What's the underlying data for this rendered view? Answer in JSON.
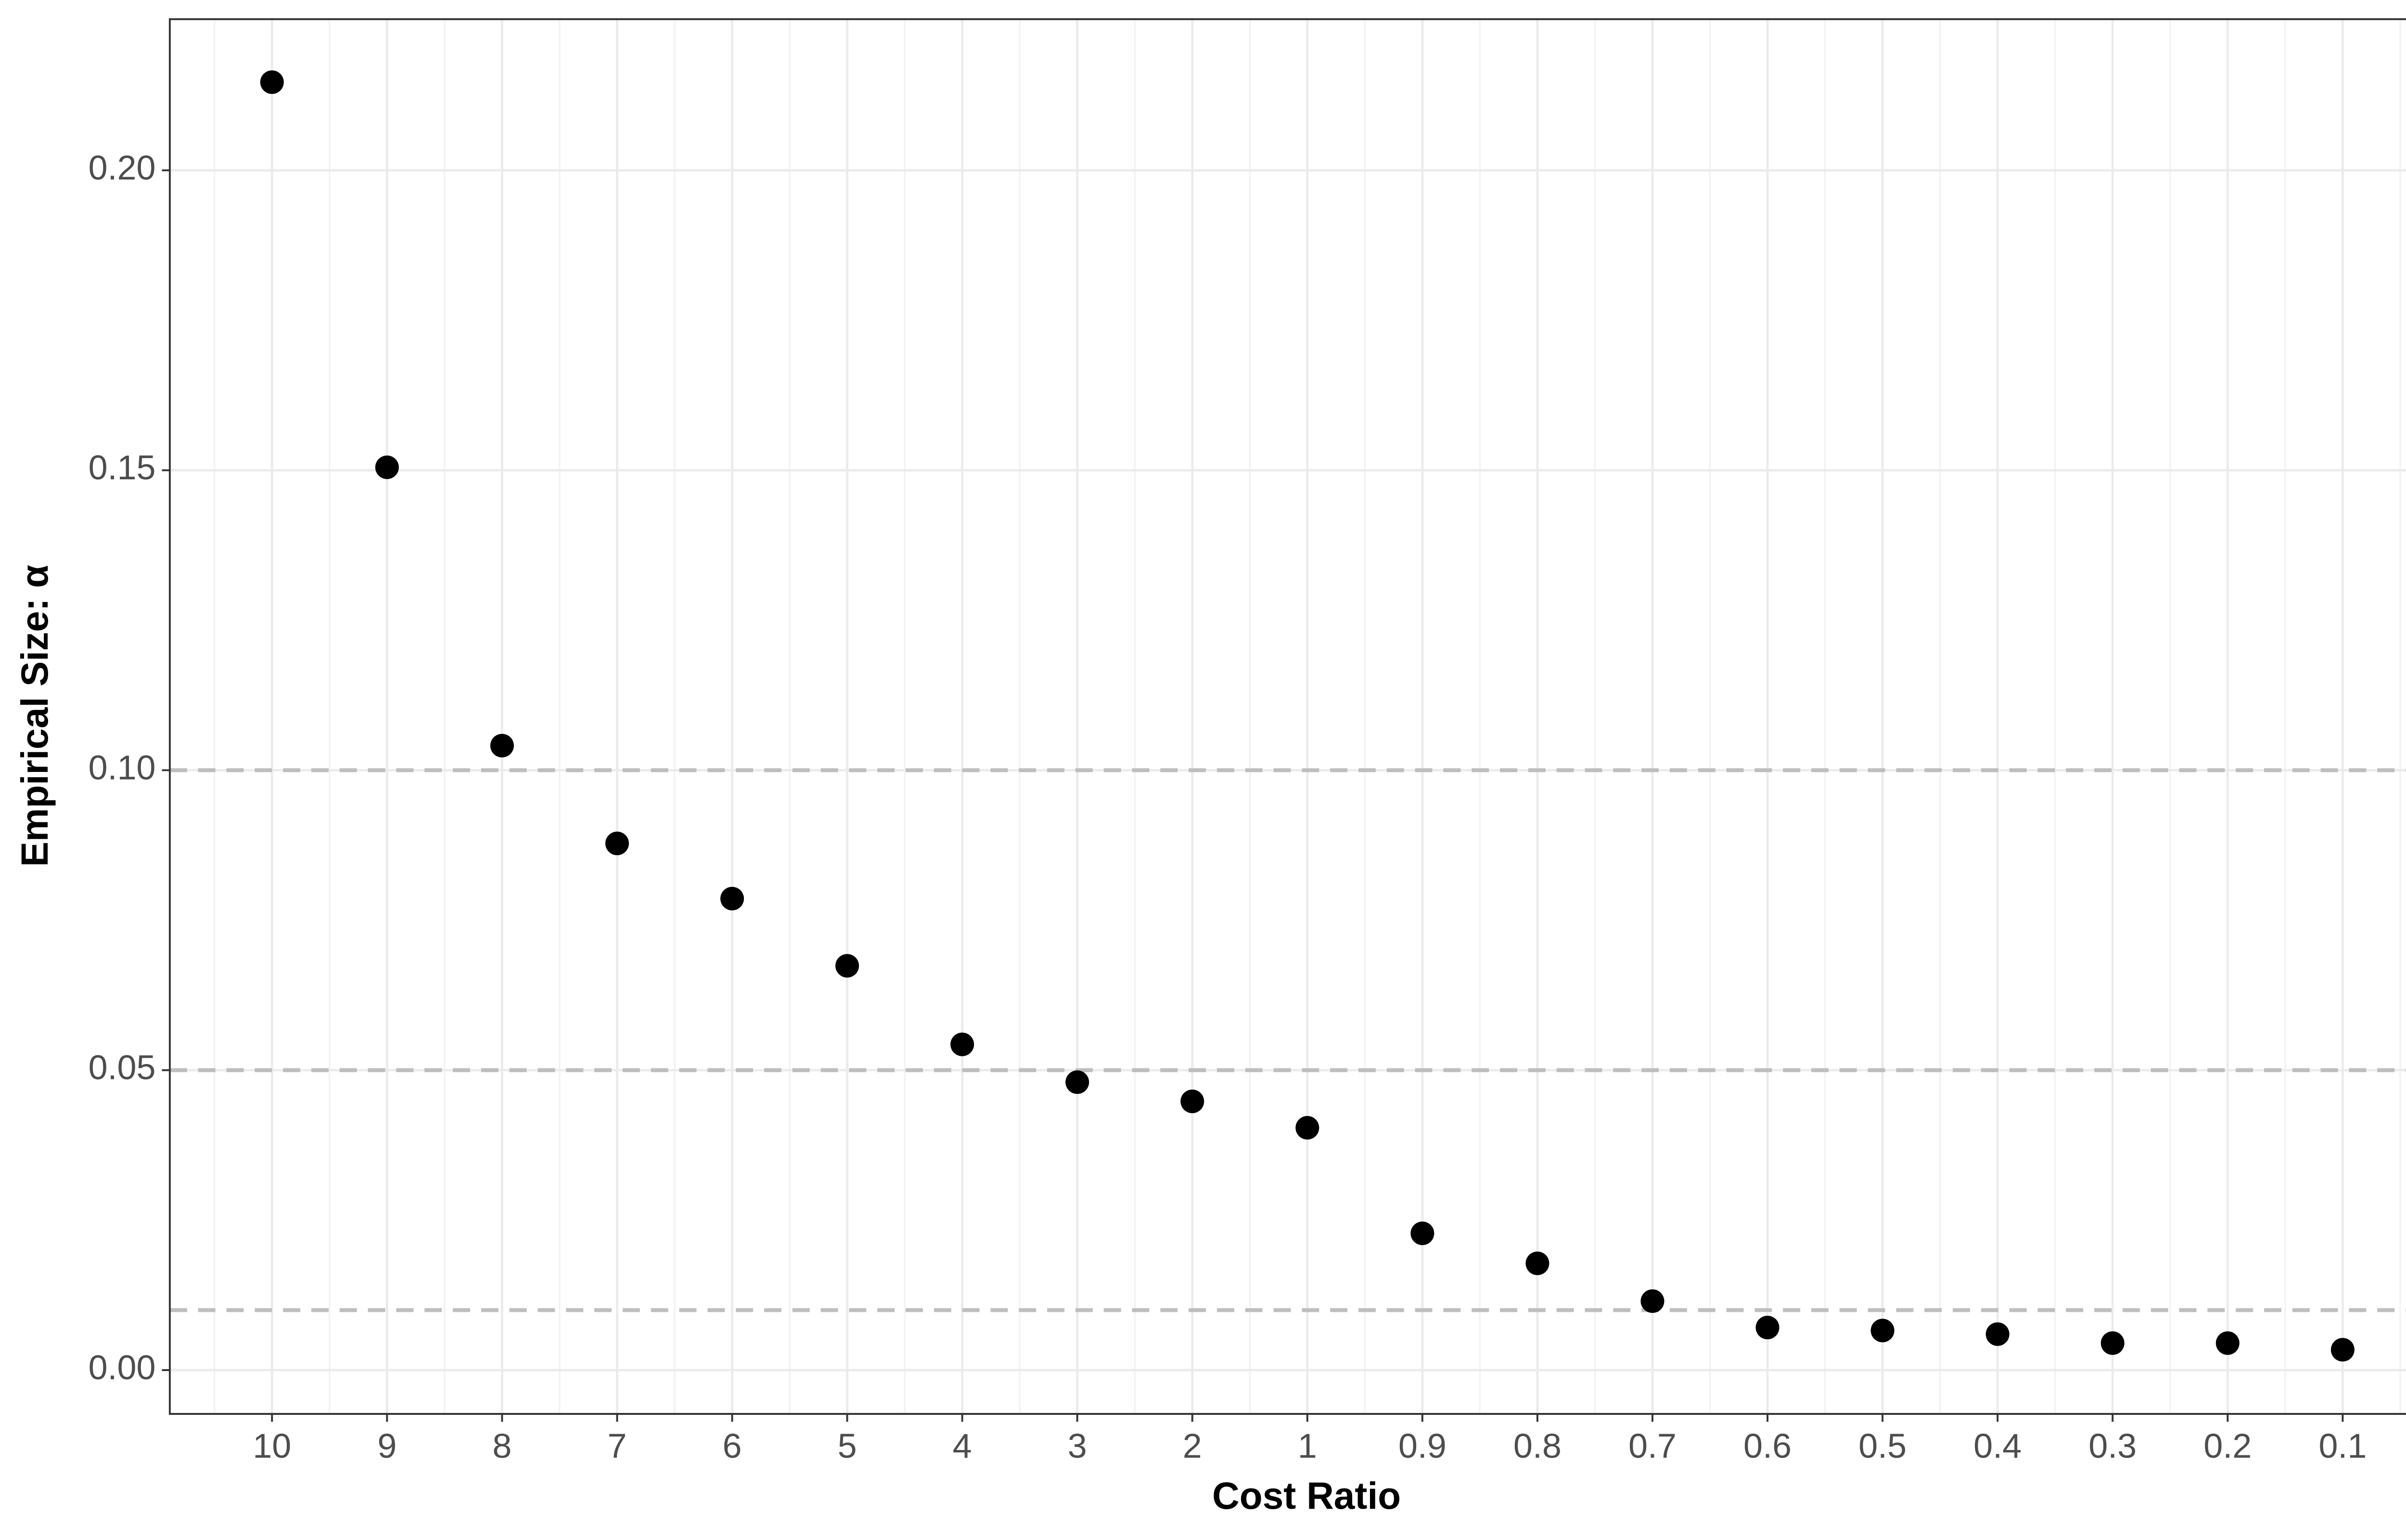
{
  "chart_data": {
    "type": "scatter",
    "x_label": "Cost Ratio",
    "y_label": "Empirical Size: α",
    "categories": [
      "10",
      "9",
      "8",
      "7",
      "6",
      "5",
      "4",
      "3",
      "2",
      "1",
      "0.9",
      "0.8",
      "0.7",
      "0.6",
      "0.5",
      "0.4",
      "0.3",
      "0.2",
      "0.1"
    ],
    "values": [
      0.2147,
      0.1505,
      0.1041,
      0.0878,
      0.0786,
      0.0674,
      0.0543,
      0.048,
      0.0448,
      0.0404,
      0.0228,
      0.0178,
      0.0115,
      0.0071,
      0.0066,
      0.006,
      0.0045,
      0.0045,
      0.0034
    ],
    "color": "#000000",
    "ylim": [
      -0.0073,
      0.2252
    ],
    "yticks": [
      {
        "value": 0,
        "label": "0.00"
      },
      {
        "value": 0.05,
        "label": "0.05"
      },
      {
        "value": 0.1,
        "label": "0.10"
      },
      {
        "value": 0.15,
        "label": "0.15"
      },
      {
        "value": 0.2,
        "label": "0.20"
      }
    ],
    "reference_lines": [
      0.1,
      0.05,
      0.01
    ],
    "reference_color": "#bebebe",
    "grid": true
  }
}
